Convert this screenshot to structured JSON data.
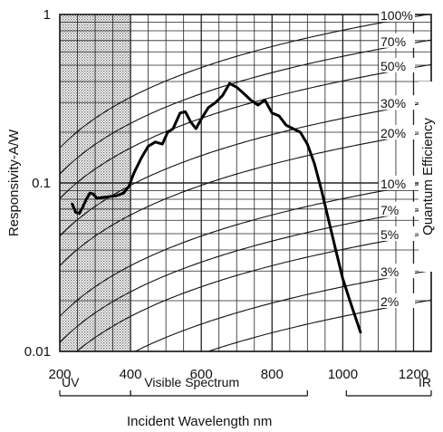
{
  "chart_data": {
    "type": "line",
    "title": "",
    "xlabel": "Incident Wavelength nm",
    "ylabel": "Responsivity-A/W",
    "y2label": "Quantum Efficiency",
    "xlim": [
      200,
      1250
    ],
    "ylim": [
      0.01,
      1
    ],
    "yscale": "log",
    "grid": true,
    "x_ticks": [
      "200",
      "400",
      "600",
      "800",
      "1000",
      "1200"
    ],
    "y_ticks": [
      {
        "value": 1,
        "label": "1"
      },
      {
        "value": 0.1,
        "label": "0.1"
      },
      {
        "value": 0.01,
        "label": "0.01"
      }
    ],
    "bands": [
      {
        "label": "UV",
        "from": 200,
        "to": 400
      },
      {
        "label": "Visible Spectrum",
        "from": 400,
        "to": 900
      },
      {
        "label": "IR",
        "from": 1010,
        "to": 1250
      }
    ],
    "uv_shaded_region": [
      200,
      400
    ],
    "qe_lines": [
      {
        "label": "100%",
        "qe": 1.0
      },
      {
        "label": "70%",
        "qe": 0.7
      },
      {
        "label": "50%",
        "qe": 0.5
      },
      {
        "label": "30%",
        "qe": 0.3
      },
      {
        "label": "20%",
        "qe": 0.2
      },
      {
        "label": "10%",
        "qe": 0.1
      },
      {
        "label": "7%",
        "qe": 0.07
      },
      {
        "label": "5%",
        "qe": 0.05
      },
      {
        "label": "3%",
        "qe": 0.03
      },
      {
        "label": "2%",
        "qe": 0.02
      }
    ],
    "series": [
      {
        "x": [
          235,
          245,
          255,
          265,
          275,
          285,
          295,
          305,
          320,
          340,
          360,
          380,
          395,
          410,
          430,
          450,
          470,
          490,
          505,
          520,
          540,
          555,
          570,
          585,
          600,
          620,
          640,
          660,
          680,
          700,
          720,
          740,
          760,
          780,
          800,
          820,
          840,
          860,
          880,
          900,
          920,
          940,
          960,
          980,
          1000,
          1020,
          1040,
          1050
        ],
        "y": [
          0.075,
          0.067,
          0.066,
          0.072,
          0.08,
          0.087,
          0.086,
          0.081,
          0.082,
          0.083,
          0.084,
          0.087,
          0.095,
          0.115,
          0.14,
          0.165,
          0.175,
          0.17,
          0.2,
          0.21,
          0.26,
          0.265,
          0.23,
          0.21,
          0.24,
          0.28,
          0.3,
          0.33,
          0.39,
          0.37,
          0.34,
          0.31,
          0.29,
          0.31,
          0.26,
          0.25,
          0.22,
          0.21,
          0.2,
          0.17,
          0.13,
          0.09,
          0.06,
          0.04,
          0.027,
          0.02,
          0.015,
          0.013
        ]
      }
    ]
  }
}
